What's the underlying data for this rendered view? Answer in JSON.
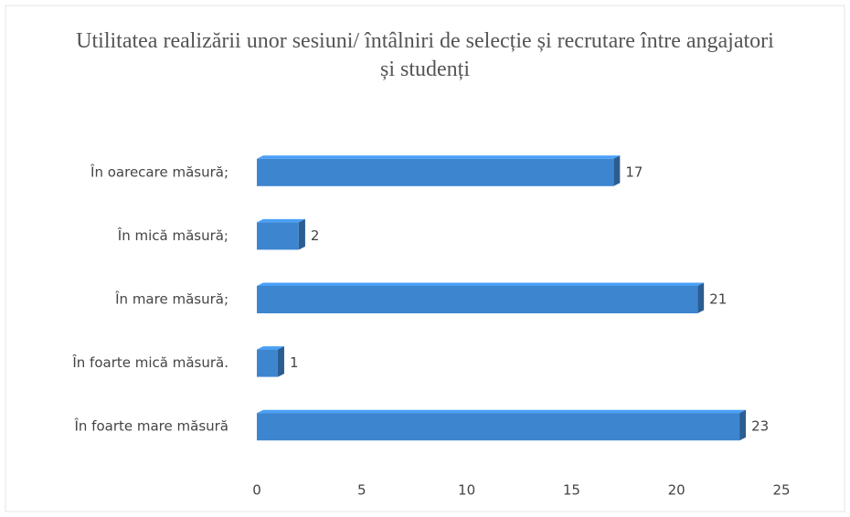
{
  "chart_data": {
    "type": "bar",
    "orientation": "horizontal",
    "title": "Utilitatea realizării unor sesiuni/ întâlniri de selecție și recrutare între angajatori și studenți",
    "categories": [
      "În oarecare măsură;",
      "În mică măsură;",
      "În mare măsură;",
      "În foarte mică măsură.",
      "În foarte mare măsură"
    ],
    "values": [
      17,
      2,
      21,
      1,
      23
    ],
    "color": "#3d85cf",
    "xlim": [
      0,
      25
    ],
    "xticks": [
      0,
      5,
      10,
      15,
      20,
      25
    ],
    "grid": false
  }
}
